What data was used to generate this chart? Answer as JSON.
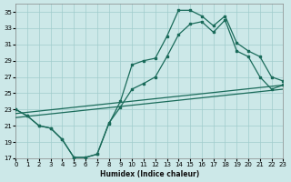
{
  "xlabel": "Humidex (Indice chaleur)",
  "background_color": "#cce8e8",
  "grid_color": "#a0cccc",
  "line_color": "#1a6b5a",
  "xlim": [
    0,
    23
  ],
  "ylim": [
    17,
    36
  ],
  "xticks": [
    0,
    1,
    2,
    3,
    4,
    5,
    6,
    7,
    8,
    9,
    10,
    11,
    12,
    13,
    14,
    15,
    16,
    17,
    18,
    19,
    20,
    21,
    22,
    23
  ],
  "yticks": [
    17,
    19,
    21,
    23,
    25,
    27,
    29,
    31,
    33,
    35
  ],
  "upper_curve_x": [
    0,
    1,
    2,
    3,
    4,
    5,
    6,
    7,
    8,
    9,
    10,
    11,
    12,
    13,
    14,
    15,
    16,
    17,
    18,
    19,
    20,
    21,
    22,
    23
  ],
  "upper_curve_y": [
    23.0,
    22.2,
    21.0,
    20.7,
    19.3,
    17.1,
    17.1,
    17.5,
    21.2,
    24.0,
    28.5,
    29.0,
    29.3,
    32.0,
    35.2,
    35.2,
    34.5,
    33.3,
    34.5,
    31.2,
    30.2,
    29.5,
    27.0,
    26.5
  ],
  "lower_curve_x": [
    0,
    1,
    2,
    3,
    4,
    5,
    6,
    7,
    8,
    9,
    10,
    11,
    12,
    13,
    14,
    15,
    16,
    17,
    18,
    19,
    20,
    21,
    22,
    23
  ],
  "lower_curve_y": [
    23.0,
    22.2,
    21.0,
    20.7,
    19.3,
    17.1,
    17.1,
    17.5,
    21.3,
    23.3,
    25.5,
    26.2,
    27.0,
    29.5,
    32.2,
    33.5,
    33.8,
    32.5,
    34.0,
    30.2,
    29.5,
    27.0,
    25.5,
    26.0
  ],
  "straight_line1_x": [
    0,
    23
  ],
  "straight_line1_y": [
    22.5,
    26.0
  ],
  "straight_line2_x": [
    0,
    23
  ],
  "straight_line2_y": [
    22.0,
    25.5
  ]
}
